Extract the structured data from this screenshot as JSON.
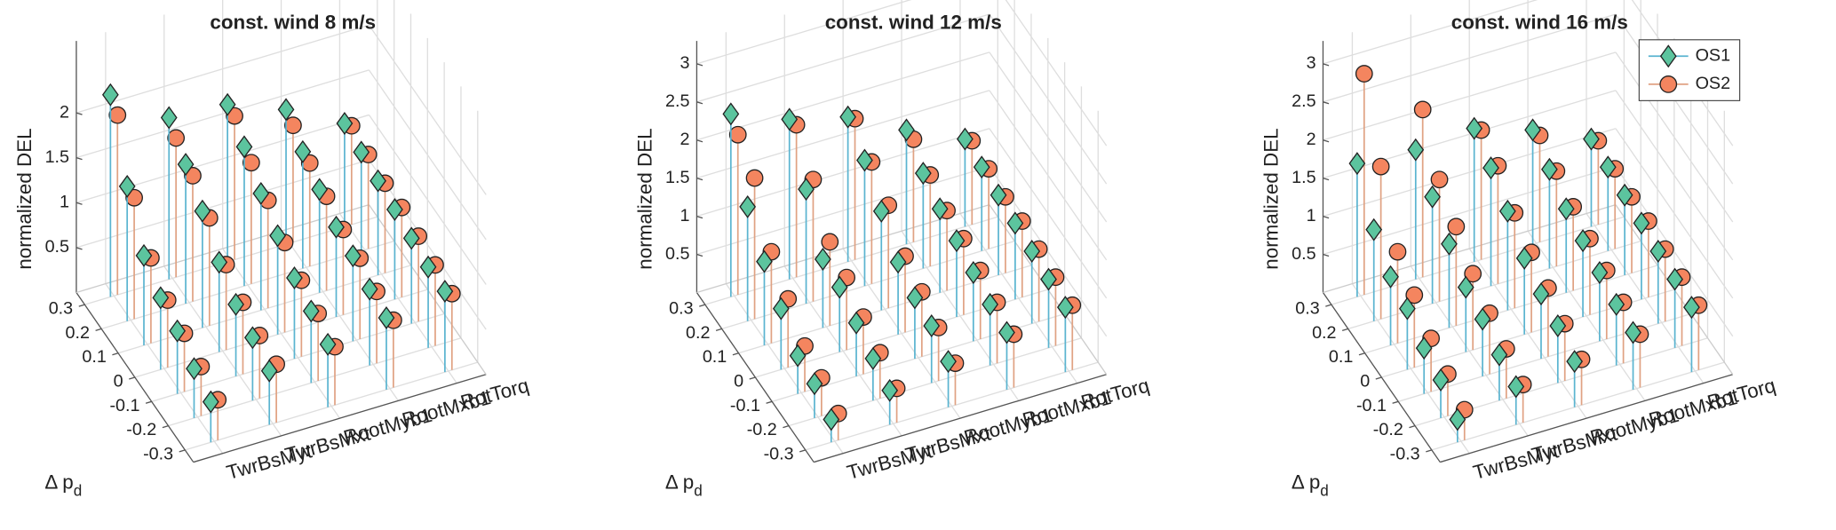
{
  "chart_data": [
    {
      "type": "stem3",
      "title": "const. wind 8 m/s",
      "z_label": "normalized DEL",
      "y_label": "Δ p",
      "y_label_sub": "d",
      "categories": [
        "TwrBsMyt",
        "TwrBsMxt",
        "RootMyb1",
        "RootMxb1",
        "RotTorq"
      ],
      "x": [
        -0.3,
        -0.2,
        -0.1,
        0,
        0.1,
        0.2,
        0.3
      ],
      "xlim": [
        -0.35,
        0.35
      ],
      "xticks": [
        -0.3,
        -0.2,
        -0.1,
        0,
        0.1,
        0.2,
        0.3
      ],
      "zlim": [
        0,
        2.8
      ],
      "zticks": [
        0.5,
        1,
        1.5,
        2
      ],
      "grid": true,
      "series": [
        {
          "marker": "diamond",
          "color": "#5cc49e",
          "line_color": "#5ab4d0",
          "values": [
            [
              0.45,
              0.55,
              0.7,
              0.8,
              1.0,
              1.5,
              2.25
            ],
            [
              0.6,
              0.7,
              0.8,
              1.0,
              1.3,
              1.55,
              1.8
            ],
            [
              0.7,
              0.8,
              0.9,
              1.1,
              1.3,
              1.55,
              1.75
            ],
            [
              0.8,
              0.85,
              0.95,
              1.0,
              1.15,
              1.3,
              1.5
            ],
            [
              0.9,
              0.9,
              0.95,
              1.0,
              1.05,
              1.1,
              1.15
            ]
          ]
        },
        {
          "marker": "circle",
          "color": "#f4855f",
          "line_color": "#e0a283",
          "values": [
            [
              0.45,
              0.55,
              0.65,
              0.75,
              0.95,
              1.35,
              2.0
            ],
            [
              0.65,
              0.7,
              0.8,
              0.95,
              1.2,
              1.4,
              1.55
            ],
            [
              0.65,
              0.75,
              0.85,
              1.0,
              1.2,
              1.35,
              1.6
            ],
            [
              0.75,
              0.8,
              0.9,
              0.95,
              1.05,
              1.15,
              1.3
            ],
            [
              0.85,
              0.9,
              0.95,
              1.0,
              1.0,
              1.05,
              1.1
            ]
          ]
        }
      ]
    },
    {
      "type": "stem3",
      "title": "const. wind 12 m/s",
      "z_label": "normalized DEL",
      "y_label": "Δ p",
      "y_label_sub": "d",
      "categories": [
        "TwrBsMyt",
        "TwrBsMxt",
        "RootMyb1",
        "RootMxb1",
        "RotTorq"
      ],
      "x": [
        -0.3,
        -0.2,
        -0.1,
        0,
        0.1,
        0.2,
        0.3
      ],
      "xlim": [
        -0.35,
        0.35
      ],
      "xticks": [
        -0.3,
        -0.2,
        -0.1,
        0,
        0.1,
        0.2,
        0.3
      ],
      "zlim": [
        0,
        3.3
      ],
      "zticks": [
        0.5,
        1,
        1.5,
        2,
        2.5,
        3
      ],
      "grid": true,
      "series": [
        {
          "marker": "diamond",
          "color": "#5cc49e",
          "line_color": "#5ab4d0",
          "values": [
            [
              0.3,
              0.45,
              0.5,
              0.8,
              1.1,
              1.5,
              2.4
            ],
            [
              0.45,
              0.55,
              0.7,
              0.85,
              0.9,
              1.5,
              2.1
            ],
            [
              0.6,
              0.75,
              0.8,
              0.95,
              1.3,
              1.65,
              1.9
            ],
            [
              0.75,
              0.8,
              0.9,
              1.0,
              1.1,
              1.25,
              1.5
            ],
            [
              0.85,
              0.9,
              0.95,
              1.0,
              1.05,
              1.1,
              1.15
            ]
          ]
        },
        {
          "marker": "circle",
          "color": "#f4855f",
          "line_color": "#e0a283",
          "values": [
            [
              0.35,
              0.5,
              0.6,
              0.9,
              1.2,
              1.85,
              2.1
            ],
            [
              0.45,
              0.6,
              0.75,
              0.95,
              1.1,
              1.6,
              2.0
            ],
            [
              0.55,
              0.7,
              0.85,
              1.0,
              1.35,
              1.6,
              1.85
            ],
            [
              0.7,
              0.8,
              0.9,
              1.0,
              1.05,
              1.2,
              1.35
            ],
            [
              0.85,
              0.9,
              0.95,
              1.0,
              1.0,
              1.05,
              1.1
            ]
          ]
        }
      ]
    },
    {
      "type": "stem3",
      "title": "const. wind 16 m/s",
      "z_label": "normalized DEL",
      "y_label": "Δ p",
      "y_label_sub": "d",
      "categories": [
        "TwrBsMyt",
        "TwrBsMxt",
        "RootMyb1",
        "RootMxb1",
        "RotTorq"
      ],
      "x": [
        -0.3,
        -0.2,
        -0.1,
        0,
        0.1,
        0.2,
        0.3
      ],
      "xlim": [
        -0.35,
        0.35
      ],
      "xticks": [
        -0.3,
        -0.2,
        -0.1,
        0,
        0.1,
        0.2,
        0.3
      ],
      "zlim": [
        0,
        3.3
      ],
      "zticks": [
        0.5,
        1,
        1.5,
        2,
        2.5,
        3
      ],
      "grid": true,
      "legend": "northeast",
      "series": [
        {
          "name": "OS1",
          "marker": "diamond",
          "color": "#5cc49e",
          "line_color": "#5ab4d0",
          "values": [
            [
              0.3,
              0.5,
              0.6,
              0.8,
              0.9,
              1.2,
              1.75
            ],
            [
              0.5,
              0.6,
              0.75,
              0.85,
              1.1,
              1.4,
              1.7
            ],
            [
              0.6,
              0.75,
              0.85,
              1.0,
              1.3,
              1.55,
              1.75
            ],
            [
              0.75,
              0.8,
              0.9,
              1.0,
              1.1,
              1.3,
              1.5
            ],
            [
              0.85,
              0.9,
              0.95,
              1.0,
              1.05,
              1.1,
              1.15
            ]
          ]
        },
        {
          "name": "OS2",
          "marker": "circle",
          "color": "#f4855f",
          "line_color": "#e0a283",
          "values": [
            [
              0.4,
              0.55,
              0.7,
              0.95,
              1.2,
              2.0,
              2.9
            ],
            [
              0.5,
              0.65,
              0.8,
              1.0,
              1.3,
              1.6,
              2.2
            ],
            [
              0.6,
              0.75,
              0.9,
              1.05,
              1.25,
              1.55,
              1.7
            ],
            [
              0.7,
              0.8,
              0.9,
              1.0,
              1.1,
              1.25,
              1.4
            ],
            [
              0.85,
              0.9,
              0.95,
              1.0,
              1.0,
              1.05,
              1.1
            ]
          ]
        }
      ]
    }
  ]
}
